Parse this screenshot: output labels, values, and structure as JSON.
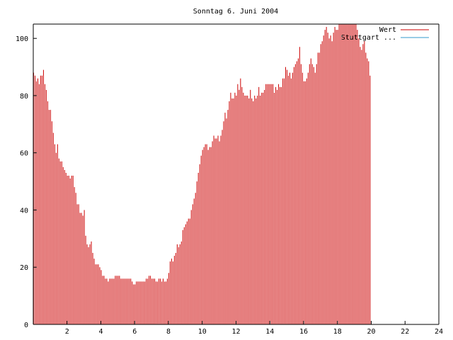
{
  "chart_data": {
    "type": "bar",
    "title": "Sonntag 6. Juni 2004",
    "xlabel": "",
    "ylabel": "",
    "xlim": [
      0,
      24
    ],
    "ylim": [
      0,
      105
    ],
    "xticks": [
      2,
      4,
      6,
      8,
      10,
      12,
      14,
      16,
      18,
      20,
      22,
      24
    ],
    "yticks": [
      0,
      20,
      40,
      60,
      80,
      100
    ],
    "legend_position": "top-right",
    "grid": false,
    "series": [
      {
        "name": "Wert",
        "color": "#cc0000",
        "x_start": 0,
        "x_step": 0.0833,
        "values": [
          88,
          87,
          85,
          86,
          84,
          87,
          87,
          89,
          84,
          82,
          78,
          75,
          75,
          71,
          67,
          63,
          60,
          63,
          58,
          57,
          57,
          55,
          54,
          53,
          52,
          52,
          51,
          52,
          52,
          48,
          46,
          42,
          42,
          39,
          39,
          38,
          40,
          31,
          28,
          27,
          28,
          29,
          25,
          23,
          21,
          21,
          21,
          20,
          19,
          17,
          17,
          16,
          16,
          15,
          16,
          16,
          16,
          16,
          17,
          17,
          17,
          17,
          16,
          16,
          16,
          16,
          16,
          16,
          16,
          16,
          15,
          14,
          14,
          15,
          15,
          15,
          15,
          15,
          15,
          15,
          16,
          16,
          17,
          17,
          16,
          16,
          16,
          15,
          15,
          16,
          16,
          15,
          16,
          15,
          15,
          16,
          18,
          22,
          23,
          22,
          24,
          25,
          28,
          27,
          28,
          29,
          33,
          34,
          35,
          36,
          37,
          37,
          40,
          42,
          44,
          46,
          50,
          53,
          56,
          59,
          61,
          62,
          63,
          63,
          61,
          62,
          62,
          64,
          66,
          65,
          65,
          66,
          64,
          66,
          68,
          71,
          74,
          72,
          75,
          78,
          81,
          79,
          79,
          81,
          80,
          84,
          82,
          86,
          83,
          81,
          80,
          80,
          80,
          79,
          82,
          79,
          78,
          80,
          79,
          80,
          83,
          80,
          81,
          81,
          82,
          84,
          84,
          84,
          84,
          84,
          84,
          81,
          83,
          82,
          84,
          83,
          83,
          86,
          86,
          90,
          89,
          87,
          88,
          86,
          88,
          90,
          91,
          92,
          93,
          97,
          91,
          88,
          85,
          85,
          86,
          88,
          91,
          93,
          91,
          90,
          88,
          91,
          95,
          95,
          98,
          99,
          101,
          103,
          104,
          102,
          100,
          101,
          99,
          102,
          104,
          103,
          103,
          105,
          106,
          105,
          105,
          105,
          105,
          105,
          105,
          105,
          105,
          105,
          105,
          105,
          103,
          100,
          97,
          96,
          98,
          99,
          95,
          93,
          92,
          87
        ]
      },
      {
        "name": "Stuttgart ...",
        "color": "#3399cc",
        "values": []
      }
    ]
  }
}
